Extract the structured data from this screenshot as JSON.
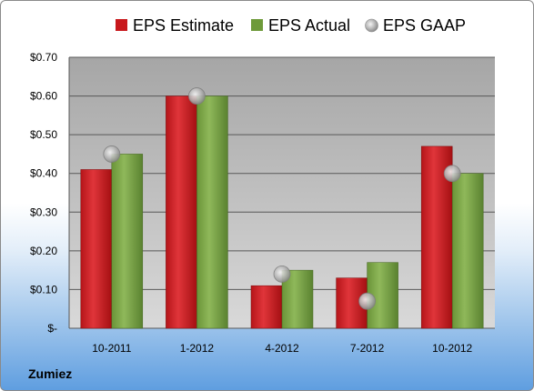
{
  "company": "Zumiez",
  "colors": {
    "estimate": "#c8181c",
    "actual": "#6e9a3a",
    "gaap": "#b8b8b8",
    "plot_bg_top": "#a6a6a6",
    "plot_bg_bottom": "#d9d9d9"
  },
  "chart_data": {
    "type": "bar",
    "categories": [
      "10-2011",
      "1-2012",
      "4-2012",
      "7-2012",
      "10-2012"
    ],
    "series": [
      {
        "name": "EPS Estimate",
        "kind": "bar",
        "color": "#c8181c",
        "values": [
          0.41,
          0.6,
          0.11,
          0.13,
          0.47
        ]
      },
      {
        "name": "EPS Actual",
        "kind": "bar",
        "color": "#6e9a3a",
        "values": [
          0.45,
          0.6,
          0.15,
          0.17,
          0.4
        ]
      },
      {
        "name": "EPS GAAP",
        "kind": "marker",
        "color": "#b8b8b8",
        "values": [
          0.45,
          0.6,
          0.14,
          0.07,
          0.4
        ]
      }
    ],
    "yticks": [
      {
        "value": 0.0,
        "label": "$-"
      },
      {
        "value": 0.1,
        "label": "$0.10"
      },
      {
        "value": 0.2,
        "label": "$0.20"
      },
      {
        "value": 0.3,
        "label": "$0.30"
      },
      {
        "value": 0.4,
        "label": "$0.40"
      },
      {
        "value": 0.5,
        "label": "$0.50"
      },
      {
        "value": 0.6,
        "label": "$0.60"
      },
      {
        "value": 0.7,
        "label": "$0.70"
      }
    ],
    "ylim": [
      0,
      0.7
    ],
    "grid": true,
    "legend_position": "top"
  }
}
